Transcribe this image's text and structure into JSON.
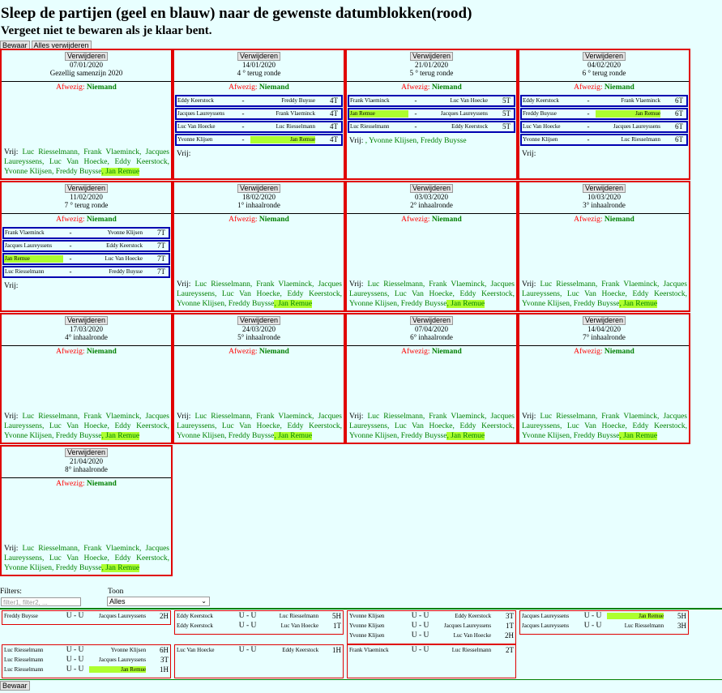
{
  "title": "Sleep de partijen (geel en blauw) naar de gewenste datumblokken(rood)",
  "subtitle": "Vergeet niet te bewaren als je klaar bent.",
  "buttons": {
    "save": "Bewaar",
    "delete_all": "Alles verwijderen",
    "delete": "Verwijderen"
  },
  "labels": {
    "absent": "Afwezig:",
    "free": "Vrij:",
    "nobody": "Niemand"
  },
  "blocks": [
    {
      "date": "07/01/2020",
      "round": "Gezellig samenzijn 2020",
      "games": [],
      "free_pre": "Luc Riesselmann, Frank Vlaeminck, Jacques Laureyssens, Luc Van Hoecke, Eddy Keerstock, Yvonne Klijsen, Freddy Buysse",
      "free_hl": ", Jan Remue"
    },
    {
      "date": "14/01/2020",
      "round": "4 ° terug ronde",
      "games": [
        {
          "p1": "Eddy Keerstock",
          "p2": "Freddy Buysse",
          "code": "4T",
          "hl": ""
        },
        {
          "p1": "Jacques Laureyssens",
          "p2": "Frank Vlaeminck",
          "code": "4T",
          "hl": ""
        },
        {
          "p1": "Luc Van Hoecke",
          "p2": "Luc Riesselmann",
          "code": "4T",
          "hl": ""
        },
        {
          "p1": "Yvonne Klijsen",
          "p2": "Jan Remue",
          "code": "4T",
          "hl": "p2"
        }
      ],
      "free_pre": "",
      "free_hl": ""
    },
    {
      "date": "21/01/2020",
      "round": "5 ° terug ronde",
      "games": [
        {
          "p1": "Frank Vlaeminck",
          "p2": "Luc Van Hoecke",
          "code": "5T",
          "hl": ""
        },
        {
          "p1": "Jan Remue",
          "p2": "Jacques Laureyssens",
          "code": "5T",
          "hl": "p1"
        },
        {
          "p1": "Luc Riesselmann",
          "p2": "Eddy Keerstock",
          "code": "5T",
          "hl": ""
        }
      ],
      "free_pre": ", Yvonne Klijsen, Freddy Buysse",
      "free_hl": ""
    },
    {
      "date": "04/02/2020",
      "round": "6 ° terug ronde",
      "games": [
        {
          "p1": "Eddy Keerstock",
          "p2": "Frank Vlaeminck",
          "code": "6T",
          "hl": ""
        },
        {
          "p1": "Freddy Buysse",
          "p2": "Jan Remue",
          "code": "6T",
          "hl": "p2"
        },
        {
          "p1": "Luc Van Hoecke",
          "p2": "Jacques Laureyssens",
          "code": "6T",
          "hl": ""
        },
        {
          "p1": "Yvonne Klijsen",
          "p2": "Luc Riesselmann",
          "code": "6T",
          "hl": ""
        }
      ],
      "free_pre": "",
      "free_hl": ""
    },
    {
      "date": "11/02/2020",
      "round": "7 ° terug ronde",
      "games": [
        {
          "p1": "Frank Vlaeminck",
          "p2": "Yvonne Klijsen",
          "code": "7T",
          "hl": ""
        },
        {
          "p1": "Jacques Laureyssens",
          "p2": "Eddy Keerstock",
          "code": "7T",
          "hl": ""
        },
        {
          "p1": "Jan Remue",
          "p2": "Luc Van Hoecke",
          "code": "7T",
          "hl": "p1"
        },
        {
          "p1": "Luc Riesselmann",
          "p2": "Freddy Buysse",
          "code": "7T",
          "hl": ""
        }
      ],
      "free_pre": "",
      "free_hl": ""
    },
    {
      "date": "18/02/2020",
      "round": "1° inhaalronde",
      "games": [],
      "free_pre": "Luc Riesselmann, Frank Vlaeminck, Jacques Laureyssens, Luc Van Hoecke, Eddy Keerstock, Yvonne Klijsen, Freddy Buysse",
      "free_hl": ", Jan Remue"
    },
    {
      "date": "03/03/2020",
      "round": "2° inhaalronde",
      "games": [],
      "free_pre": "Luc Riesselmann, Frank Vlaeminck, Jacques Laureyssens, Luc Van Hoecke, Eddy Keerstock, Yvonne Klijsen, Freddy Buysse",
      "free_hl": ", Jan Remue"
    },
    {
      "date": "10/03/2020",
      "round": "3° inhaalronde",
      "games": [],
      "free_pre": "Luc Riesselmann, Frank Vlaeminck, Jacques Laureyssens, Luc Van Hoecke, Eddy Keerstock, Yvonne Klijsen, Freddy Buysse",
      "free_hl": ", Jan Remue"
    },
    {
      "date": "17/03/2020",
      "round": "4° inhaalronde",
      "games": [],
      "free_pre": "Luc Riesselmann, Frank Vlaeminck, Jacques Laureyssens, Luc Van Hoecke, Eddy Keerstock, Yvonne Klijsen, Freddy Buysse",
      "free_hl": ", Jan Remue"
    },
    {
      "date": "24/03/2020",
      "round": "5° inhaalronde",
      "games": [],
      "free_pre": "Luc Riesselmann, Frank Vlaeminck, Jacques Laureyssens, Luc Van Hoecke, Eddy Keerstock, Yvonne Klijsen, Freddy Buysse",
      "free_hl": ", Jan Remue"
    },
    {
      "date": "07/04/2020",
      "round": "6° inhaalronde",
      "games": [],
      "free_pre": "Luc Riesselmann, Frank Vlaeminck, Jacques Laureyssens, Luc Van Hoecke, Eddy Keerstock, Yvonne Klijsen, Freddy Buysse",
      "free_hl": ", Jan Remue"
    },
    {
      "date": "14/04/2020",
      "round": "7° inhaalronde",
      "games": [],
      "free_pre": "Luc Riesselmann, Frank Vlaeminck, Jacques Laureyssens, Luc Van Hoecke, Eddy Keerstock, Yvonne Klijsen, Freddy Buysse",
      "free_hl": ", Jan Remue"
    },
    {
      "date": "21/04/2020",
      "round": "8° inhaalronde",
      "games": [],
      "free_pre": "Luc Riesselmann, Frank Vlaeminck, Jacques Laureyssens, Luc Van Hoecke, Eddy Keerstock, Yvonne Klijsen, Freddy Buysse",
      "free_hl": ", Jan Remue"
    }
  ],
  "filters": {
    "label": "Filters:",
    "placeholder": "filter1, filter2, ...",
    "show_label": "Toon",
    "show_value": "Alles"
  },
  "pool": [
    {
      "rows": [
        {
          "p1": "Freddy Buysse",
          "uu": "U - U",
          "p2": "Jacques Laureyssens",
          "code": "2H",
          "hl": ""
        }
      ]
    },
    {
      "rows": [
        {
          "p1": "Eddy Keerstock",
          "uu": "U - U",
          "p2": "Luc Riesselmann",
          "code": "5H",
          "hl": ""
        },
        {
          "p1": "Eddy Keerstock",
          "uu": "U - U",
          "p2": "Luc Van Hoecke",
          "code": "1T",
          "hl": ""
        }
      ]
    },
    {
      "rows": [
        {
          "p1": "Yvonne Klijsen",
          "uu": "U - U",
          "p2": "Eddy Keerstock",
          "code": "3T",
          "hl": ""
        },
        {
          "p1": "Yvonne Klijsen",
          "uu": "U - U",
          "p2": "Jacques Laureyssens",
          "code": "1T",
          "hl": ""
        },
        {
          "p1": "Yvonne Klijsen",
          "uu": "U - U",
          "p2": "Luc Van Hoecke",
          "code": "2H",
          "hl": ""
        }
      ]
    },
    {
      "rows": [
        {
          "p1": "Jacques Laureyssens",
          "uu": "U - U",
          "p2": "Jan Remue",
          "code": "5H",
          "hl": "p2"
        },
        {
          "p1": "Jacques Laureyssens",
          "uu": "U - U",
          "p2": "Luc Riesselmann",
          "code": "3H",
          "hl": ""
        }
      ]
    },
    {
      "rows": [
        {
          "p1": "Luc Riesselmann",
          "uu": "U - U",
          "p2": "Yvonne Klijsen",
          "code": "6H",
          "hl": ""
        },
        {
          "p1": "Luc Riesselmann",
          "uu": "U - U",
          "p2": "Jacques Laureyssens",
          "code": "3T",
          "hl": ""
        },
        {
          "p1": "Luc Riesselmann",
          "uu": "U - U",
          "p2": "Jan Remue",
          "code": "1H",
          "hl": "p2"
        }
      ]
    },
    {
      "rows": [
        {
          "p1": "Luc Van Hoecke",
          "uu": "U - U",
          "p2": "Eddy Keerstock",
          "code": "1H",
          "hl": ""
        }
      ]
    },
    {
      "rows": [
        {
          "p1": "Frank Vlaeminck",
          "uu": "U - U",
          "p2": "Luc Riesselmann",
          "code": "2T",
          "hl": ""
        }
      ]
    }
  ]
}
